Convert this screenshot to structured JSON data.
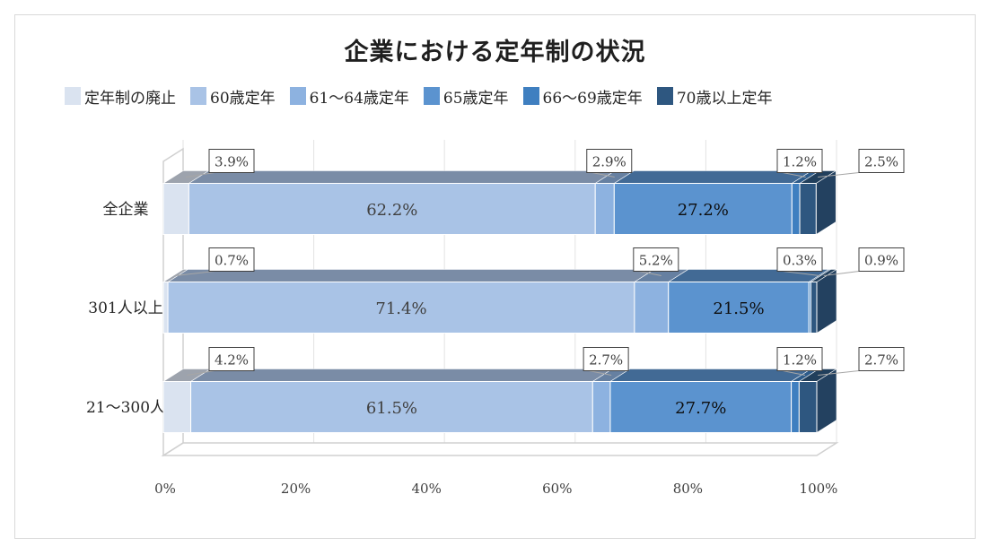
{
  "chart_data": {
    "type": "bar",
    "orientation": "horizontal",
    "stacked": true,
    "percent_stacked": true,
    "title": "企業における定年制の状況",
    "legend_position": "top",
    "grid": true,
    "xlim": [
      0,
      100
    ],
    "x_ticks": [
      "0%",
      "20%",
      "40%",
      "60%",
      "80%",
      "100%"
    ],
    "categories": [
      "全企業",
      "301人以上",
      "21～300人"
    ],
    "series": [
      {
        "name": "定年制の廃止",
        "color": "#dae3f0",
        "values": [
          3.9,
          0.7,
          4.2
        ],
        "labels": [
          "3.9%",
          "0.7%",
          "4.2%"
        ]
      },
      {
        "name": "60歳定年",
        "color": "#a9c3e6",
        "values": [
          62.2,
          71.4,
          61.5
        ],
        "labels": [
          "62.2%",
          "71.4%",
          "61.5%"
        ]
      },
      {
        "name": "61～64歳定年",
        "color": "#8db2e0",
        "values": [
          2.9,
          5.2,
          2.7
        ],
        "labels": [
          "2.9%",
          "5.2%",
          "2.7%"
        ]
      },
      {
        "name": "65歳定年",
        "color": "#5b93cf",
        "values": [
          27.2,
          21.5,
          27.7
        ],
        "labels": [
          "27.2%",
          "21.5%",
          "27.7%"
        ]
      },
      {
        "name": "66～69歳定年",
        "color": "#3f7fc0",
        "values": [
          1.2,
          0.3,
          1.2
        ],
        "labels": [
          "1.2%",
          "0.3%",
          "1.2%"
        ]
      },
      {
        "name": "70歳以上定年",
        "color": "#2e5780",
        "values": [
          2.5,
          0.9,
          2.7
        ],
        "labels": [
          "2.5%",
          "0.9%",
          "2.7%"
        ]
      }
    ]
  }
}
